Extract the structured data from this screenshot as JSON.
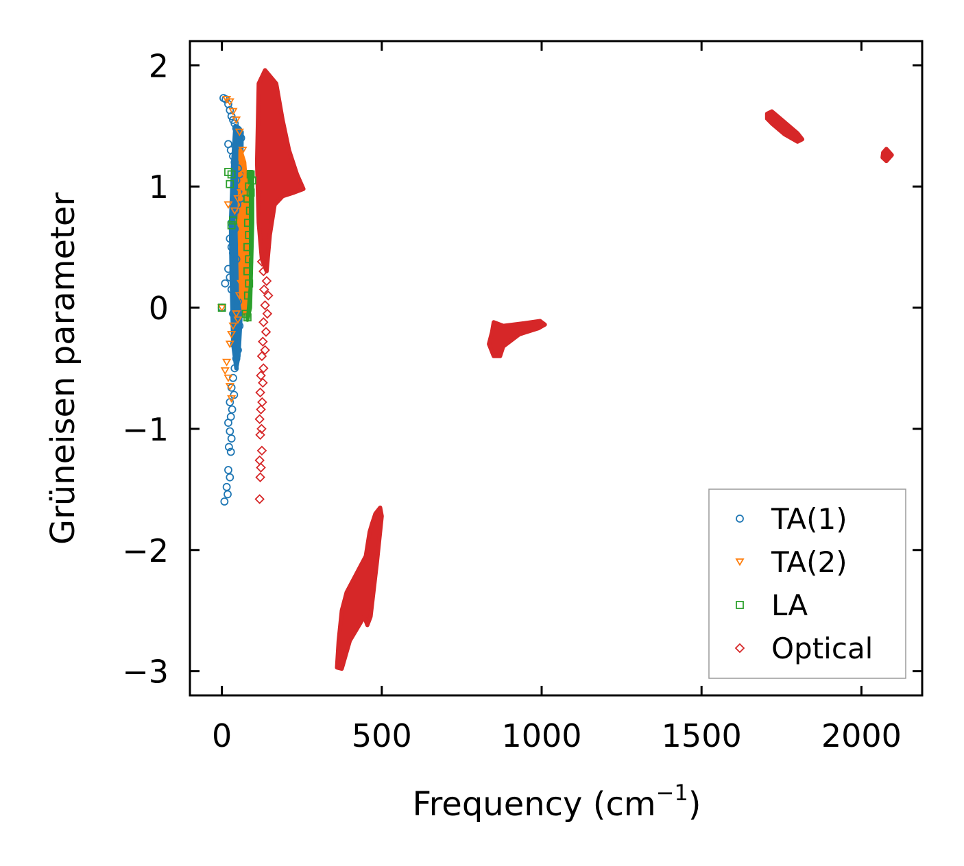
{
  "chart_data": {
    "type": "scatter",
    "xlabel": "Frequency (cm",
    "xlabel_sup": "−1",
    "xlabel_end": ")",
    "ylabel": "Grüneisen parameter",
    "xlim": [
      -100,
      2190
    ],
    "ylim": [
      -3.2,
      2.2
    ],
    "xticks": [
      0,
      500,
      1000,
      1500,
      2000
    ],
    "xtick_labels": [
      "0",
      "500",
      "1000",
      "1500",
      "2000"
    ],
    "yticks": [
      2,
      1,
      0,
      -1,
      -2,
      -3
    ],
    "ytick_labels": [
      "2",
      "1",
      "0",
      "−1",
      "−2",
      "−3"
    ],
    "legend_position": "lower-right",
    "series": [
      {
        "name": "TA(1)",
        "marker": "circle",
        "color": "#1f77b4",
        "points": [
          [
            5,
            1.73
          ],
          [
            12,
            1.72
          ],
          [
            20,
            1.68
          ],
          [
            25,
            1.63
          ],
          [
            30,
            1.58
          ],
          [
            35,
            1.55
          ],
          [
            40,
            1.52
          ],
          [
            45,
            1.48
          ],
          [
            50,
            1.45
          ],
          [
            55,
            1.42
          ],
          [
            60,
            1.4
          ],
          [
            20,
            1.35
          ],
          [
            28,
            1.3
          ],
          [
            35,
            1.25
          ],
          [
            40,
            1.2
          ],
          [
            50,
            1.15
          ],
          [
            55,
            1.1
          ],
          [
            45,
            1.05
          ],
          [
            38,
            1.0
          ],
          [
            52,
            0.95
          ],
          [
            58,
            0.9
          ],
          [
            48,
            0.85
          ],
          [
            42,
            0.8
          ],
          [
            35,
            0.75
          ],
          [
            30,
            0.7
          ],
          [
            40,
            0.65
          ],
          [
            25,
            0.57
          ],
          [
            30,
            0.5
          ],
          [
            35,
            0.45
          ],
          [
            45,
            0.4
          ],
          [
            20,
            0.32
          ],
          [
            25,
            0.25
          ],
          [
            10,
            0.2
          ],
          [
            30,
            0.15
          ],
          [
            40,
            0.1
          ],
          [
            50,
            0.05
          ],
          [
            0,
            0.0
          ],
          [
            35,
            -0.05
          ],
          [
            45,
            -0.1
          ],
          [
            55,
            -0.15
          ],
          [
            42,
            -0.2
          ],
          [
            48,
            -0.25
          ],
          [
            38,
            -0.3
          ],
          [
            50,
            -0.35
          ],
          [
            45,
            -0.42
          ],
          [
            40,
            -0.5
          ],
          [
            35,
            -0.58
          ],
          [
            30,
            -0.66
          ],
          [
            38,
            -0.72
          ],
          [
            25,
            -0.78
          ],
          [
            32,
            -0.84
          ],
          [
            28,
            -0.9
          ],
          [
            20,
            -0.95
          ],
          [
            25,
            -1.02
          ],
          [
            30,
            -1.08
          ],
          [
            22,
            -1.15
          ],
          [
            28,
            -1.19
          ],
          [
            20,
            -1.34
          ],
          [
            25,
            -1.4
          ],
          [
            15,
            -1.48
          ],
          [
            18,
            -1.54
          ],
          [
            8,
            -1.6
          ]
        ]
      },
      {
        "name": "TA(2)",
        "marker": "triangle-down",
        "color": "#ff7f0e",
        "points": [
          [
            15,
            1.72
          ],
          [
            25,
            1.7
          ],
          [
            35,
            1.62
          ],
          [
            45,
            1.55
          ],
          [
            55,
            1.45
          ],
          [
            65,
            1.3
          ],
          [
            70,
            1.1
          ],
          [
            75,
            1.0
          ],
          [
            60,
            0.95
          ],
          [
            50,
            0.9
          ],
          [
            20,
            0.85
          ],
          [
            40,
            0.8
          ],
          [
            55,
            0.7
          ],
          [
            65,
            0.6
          ],
          [
            70,
            0.5
          ],
          [
            75,
            0.4
          ],
          [
            68,
            0.3
          ],
          [
            60,
            0.2
          ],
          [
            55,
            0.1
          ],
          [
            0,
            0.0
          ],
          [
            45,
            -0.05
          ],
          [
            50,
            -0.1
          ],
          [
            35,
            -0.15
          ],
          [
            30,
            -0.22
          ],
          [
            25,
            -0.3
          ],
          [
            15,
            -0.45
          ],
          [
            10,
            -0.52
          ],
          [
            20,
            -0.58
          ],
          [
            25,
            -0.65
          ],
          [
            30,
            -0.75
          ]
        ]
      },
      {
        "name": "LA",
        "marker": "square",
        "color": "#2ca02c",
        "points": [
          [
            20,
            1.12
          ],
          [
            30,
            1.1
          ],
          [
            90,
            1.1
          ],
          [
            95,
            1.05
          ],
          [
            85,
            1.0
          ],
          [
            25,
            1.02
          ],
          [
            90,
            0.95
          ],
          [
            80,
            0.9
          ],
          [
            88,
            0.8
          ],
          [
            35,
            0.72
          ],
          [
            82,
            0.7
          ],
          [
            30,
            0.68
          ],
          [
            85,
            0.6
          ],
          [
            80,
            0.5
          ],
          [
            85,
            0.4
          ],
          [
            80,
            0.3
          ],
          [
            85,
            0.2
          ],
          [
            82,
            0.1
          ],
          [
            0,
            0.0
          ],
          [
            75,
            -0.05
          ],
          [
            80,
            -0.08
          ]
        ]
      },
      {
        "name": "Optical",
        "marker": "diamond",
        "color": "#d62728",
        "points": [
          [
            125,
            0.38
          ],
          [
            130,
            0.3
          ],
          [
            140,
            0.22
          ],
          [
            132,
            0.15
          ],
          [
            145,
            0.1
          ],
          [
            135,
            0.02
          ],
          [
            142,
            -0.05
          ],
          [
            130,
            -0.12
          ],
          [
            138,
            -0.2
          ],
          [
            128,
            -0.28
          ],
          [
            135,
            -0.35
          ],
          [
            125,
            -0.4
          ],
          [
            130,
            -0.5
          ],
          [
            122,
            -0.56
          ],
          [
            128,
            -0.62
          ],
          [
            120,
            -0.7
          ],
          [
            126,
            -0.78
          ],
          [
            122,
            -0.84
          ],
          [
            118,
            -0.92
          ],
          [
            124,
            -1.0
          ],
          [
            120,
            -1.05
          ],
          [
            125,
            -1.18
          ],
          [
            118,
            -1.26
          ],
          [
            122,
            -1.32
          ],
          [
            120,
            -1.4
          ],
          [
            118,
            -1.58
          ]
        ]
      }
    ],
    "dense_regions": [
      {
        "name": "optical-cluster-low",
        "color": "#d62728",
        "polygon": [
          [
            115,
            1.85
          ],
          [
            135,
            1.96
          ],
          [
            170,
            1.85
          ],
          [
            190,
            1.55
          ],
          [
            210,
            1.3
          ],
          [
            235,
            1.1
          ],
          [
            255,
            0.98
          ],
          [
            225,
            0.95
          ],
          [
            190,
            0.92
          ],
          [
            165,
            0.85
          ],
          [
            150,
            0.6
          ],
          [
            140,
            0.3
          ],
          [
            125,
            0.4
          ],
          [
            115,
            0.7
          ],
          [
            110,
            1.2
          ]
        ]
      },
      {
        "name": "optical-cluster-negative",
        "color": "#d62728",
        "polygon": [
          [
            470,
            -1.78
          ],
          [
            480,
            -1.7
          ],
          [
            495,
            -1.65
          ],
          [
            500,
            -1.72
          ],
          [
            485,
            -2.1
          ],
          [
            465,
            -2.55
          ],
          [
            455,
            -2.62
          ],
          [
            445,
            -2.55
          ],
          [
            400,
            -2.75
          ],
          [
            375,
            -2.98
          ],
          [
            360,
            -2.97
          ],
          [
            365,
            -2.75
          ],
          [
            375,
            -2.5
          ],
          [
            390,
            -2.35
          ],
          [
            420,
            -2.2
          ],
          [
            450,
            -2.05
          ],
          [
            462,
            -1.85
          ]
        ]
      },
      {
        "name": "optical-cluster-1000",
        "color": "#d62728",
        "polygon": [
          [
            850,
            -0.12
          ],
          [
            880,
            -0.15
          ],
          [
            940,
            -0.13
          ],
          [
            995,
            -0.11
          ],
          [
            1010,
            -0.14
          ],
          [
            990,
            -0.17
          ],
          [
            930,
            -0.22
          ],
          [
            880,
            -0.32
          ],
          [
            870,
            -0.4
          ],
          [
            850,
            -0.4
          ],
          [
            835,
            -0.3
          ],
          [
            845,
            -0.2
          ]
        ]
      },
      {
        "name": "optical-cluster-1750",
        "color": "#d62728",
        "polygon": [
          [
            1705,
            1.6
          ],
          [
            1720,
            1.62
          ],
          [
            1760,
            1.53
          ],
          [
            1800,
            1.44
          ],
          [
            1815,
            1.39
          ],
          [
            1800,
            1.37
          ],
          [
            1760,
            1.43
          ],
          [
            1720,
            1.52
          ],
          [
            1705,
            1.56
          ]
        ]
      },
      {
        "name": "optical-cluster-2080",
        "color": "#d62728",
        "polygon": [
          [
            2068,
            1.28
          ],
          [
            2078,
            1.31
          ],
          [
            2095,
            1.26
          ],
          [
            2078,
            1.21
          ],
          [
            2066,
            1.24
          ]
        ]
      },
      {
        "name": "ta1-cluster",
        "color": "#1f77b4",
        "polygon": [
          [
            42,
            1.5
          ],
          [
            55,
            1.48
          ],
          [
            62,
            1.45
          ],
          [
            60,
            1.0
          ],
          [
            62,
            0.4
          ],
          [
            58,
            -0.1
          ],
          [
            52,
            -0.4
          ],
          [
            45,
            -0.5
          ],
          [
            35,
            -0.3
          ],
          [
            30,
            0.3
          ],
          [
            28,
            0.7
          ],
          [
            35,
            1.2
          ]
        ]
      },
      {
        "name": "la-cluster",
        "color": "#2ca02c",
        "polygon": [
          [
            80,
            1.12
          ],
          [
            95,
            1.12
          ],
          [
            95,
            0.7
          ],
          [
            88,
            0.0
          ],
          [
            80,
            -0.1
          ],
          [
            75,
            0.2
          ],
          [
            78,
            0.8
          ]
        ]
      },
      {
        "name": "ta2-cluster",
        "color": "#ff7f0e",
        "polygon": [
          [
            58,
            1.3
          ],
          [
            70,
            1.2
          ],
          [
            78,
            0.9
          ],
          [
            78,
            0.2
          ],
          [
            70,
            -0.05
          ],
          [
            60,
            0.1
          ],
          [
            55,
            0.7
          ]
        ]
      }
    ]
  }
}
